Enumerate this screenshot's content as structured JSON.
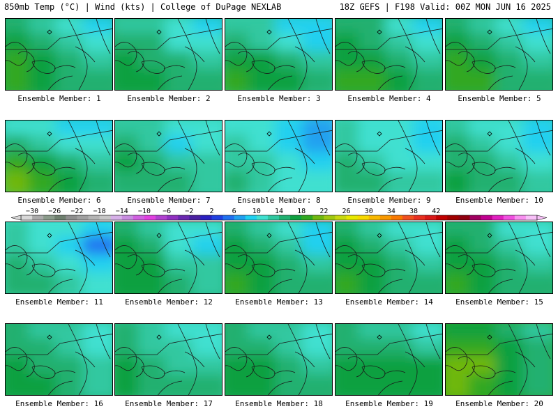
{
  "header": {
    "left": "850mb Temp (°C) | Wind (kts) | College of DuPage NEXLAB",
    "right": "18Z GEFS | F198 Valid: 00Z MON JUN 16 2025"
  },
  "panels": [
    {
      "caption": "Ensemble Member: 1",
      "temp_c": [
        14,
        12,
        10,
        8,
        16,
        14,
        12,
        10,
        18,
        16,
        14,
        12,
        18,
        16,
        14,
        14
      ]
    },
    {
      "caption": "Ensemble Member: 2",
      "temp_c": [
        12,
        12,
        10,
        8,
        14,
        14,
        10,
        10,
        16,
        14,
        14,
        12,
        16,
        16,
        14,
        14
      ]
    },
    {
      "caption": "Ensemble Member: 3",
      "temp_c": [
        12,
        12,
        8,
        8,
        14,
        12,
        10,
        8,
        16,
        16,
        14,
        12,
        18,
        16,
        16,
        14
      ]
    },
    {
      "caption": "Ensemble Member: 4",
      "temp_c": [
        14,
        14,
        10,
        8,
        16,
        14,
        12,
        10,
        16,
        16,
        14,
        12,
        18,
        18,
        16,
        14
      ]
    },
    {
      "caption": "Ensemble Member: 5",
      "temp_c": [
        14,
        12,
        10,
        8,
        16,
        14,
        12,
        10,
        18,
        16,
        14,
        12,
        18,
        18,
        14,
        14
      ]
    },
    {
      "caption": "Ensemble Member: 6",
      "temp_c": [
        10,
        10,
        8,
        8,
        14,
        12,
        10,
        10,
        18,
        16,
        14,
        12,
        20,
        18,
        16,
        14
      ]
    },
    {
      "caption": "Ensemble Member: 7",
      "temp_c": [
        12,
        12,
        10,
        10,
        14,
        12,
        8,
        10,
        16,
        14,
        12,
        12,
        14,
        14,
        14,
        12
      ]
    },
    {
      "caption": "Ensemble Member: 8",
      "temp_c": [
        10,
        10,
        8,
        6,
        12,
        10,
        8,
        6,
        12,
        12,
        10,
        8,
        14,
        12,
        10,
        10
      ]
    },
    {
      "caption": "Ensemble Member: 9",
      "temp_c": [
        12,
        10,
        10,
        8,
        12,
        10,
        10,
        8,
        14,
        12,
        10,
        10,
        14,
        14,
        12,
        12
      ]
    },
    {
      "caption": "Ensemble Member: 10",
      "temp_c": [
        12,
        10,
        10,
        8,
        14,
        12,
        10,
        8,
        14,
        14,
        12,
        10,
        16,
        14,
        14,
        12
      ]
    },
    {
      "caption": "Ensemble Member: 11",
      "temp_c": [
        12,
        10,
        10,
        8,
        12,
        10,
        8,
        4,
        14,
        12,
        10,
        8,
        14,
        14,
        12,
        10
      ]
    },
    {
      "caption": "Ensemble Member: 12",
      "temp_c": [
        14,
        12,
        10,
        10,
        16,
        14,
        10,
        8,
        16,
        16,
        12,
        12,
        16,
        16,
        14,
        12
      ]
    },
    {
      "caption": "Ensemble Member: 13",
      "temp_c": [
        14,
        12,
        10,
        8,
        16,
        14,
        12,
        8,
        16,
        16,
        14,
        12,
        18,
        16,
        14,
        14
      ]
    },
    {
      "caption": "Ensemble Member: 14",
      "temp_c": [
        14,
        12,
        10,
        10,
        16,
        14,
        12,
        10,
        16,
        16,
        14,
        12,
        18,
        16,
        14,
        14
      ]
    },
    {
      "caption": "Ensemble Member: 15",
      "temp_c": [
        14,
        14,
        10,
        10,
        16,
        14,
        12,
        10,
        16,
        16,
        14,
        12,
        18,
        16,
        14,
        14
      ]
    },
    {
      "caption": "Ensemble Member: 16",
      "temp_c": [
        14,
        12,
        12,
        10,
        14,
        14,
        12,
        10,
        16,
        14,
        14,
        12,
        16,
        16,
        14,
        12
      ]
    },
    {
      "caption": "Ensemble Member: 17",
      "temp_c": [
        14,
        12,
        10,
        10,
        14,
        12,
        12,
        10,
        16,
        14,
        12,
        12,
        16,
        14,
        14,
        14
      ]
    },
    {
      "caption": "Ensemble Member: 18",
      "temp_c": [
        14,
        12,
        12,
        10,
        14,
        14,
        12,
        10,
        16,
        16,
        14,
        12,
        16,
        16,
        14,
        14
      ]
    },
    {
      "caption": "Ensemble Member: 19",
      "temp_c": [
        14,
        12,
        12,
        10,
        14,
        14,
        14,
        12,
        16,
        16,
        16,
        16,
        16,
        16,
        16,
        16
      ]
    },
    {
      "caption": "Ensemble Member: 20",
      "temp_c": [
        16,
        16,
        14,
        12,
        18,
        18,
        16,
        14,
        20,
        20,
        16,
        14,
        20,
        18,
        16,
        14
      ]
    }
  ],
  "colorbar": {
    "labels": [
      "-30",
      "-26",
      "-22",
      "-18",
      "-14",
      "-10",
      "-6",
      "-2",
      "2",
      "6",
      "10",
      "14",
      "18",
      "22",
      "26",
      "30",
      "34",
      "38",
      "42"
    ],
    "min": -32,
    "step": 2,
    "colors": [
      "#d8d8d8",
      "#aaaaaa",
      "#8a9a8a",
      "#6e7f6e",
      "#8e8e8e",
      "#a0a0a0",
      "#b4b4b4",
      "#c6c6c6",
      "#d6b0e8",
      "#c88ce0",
      "#d060e0",
      "#e040e0",
      "#b040d0",
      "#9030c0",
      "#6a28b0",
      "#4a20a0",
      "#2a20c0",
      "#2040e0",
      "#2070f0",
      "#20a0f0",
      "#20d0f0",
      "#40e0d0",
      "#30c8a0",
      "#20b070",
      "#10a040",
      "#30a820",
      "#70b810",
      "#a0c810",
      "#c8d810",
      "#e8e800",
      "#f8d800",
      "#f8b800",
      "#f89800",
      "#f87800",
      "#f05020",
      "#e83020",
      "#d81818",
      "#c00000",
      "#a00000",
      "#900010",
      "#a00060",
      "#c00090",
      "#e020c0",
      "#f050e0",
      "#f890f0",
      "#f8c0f8"
    ]
  }
}
